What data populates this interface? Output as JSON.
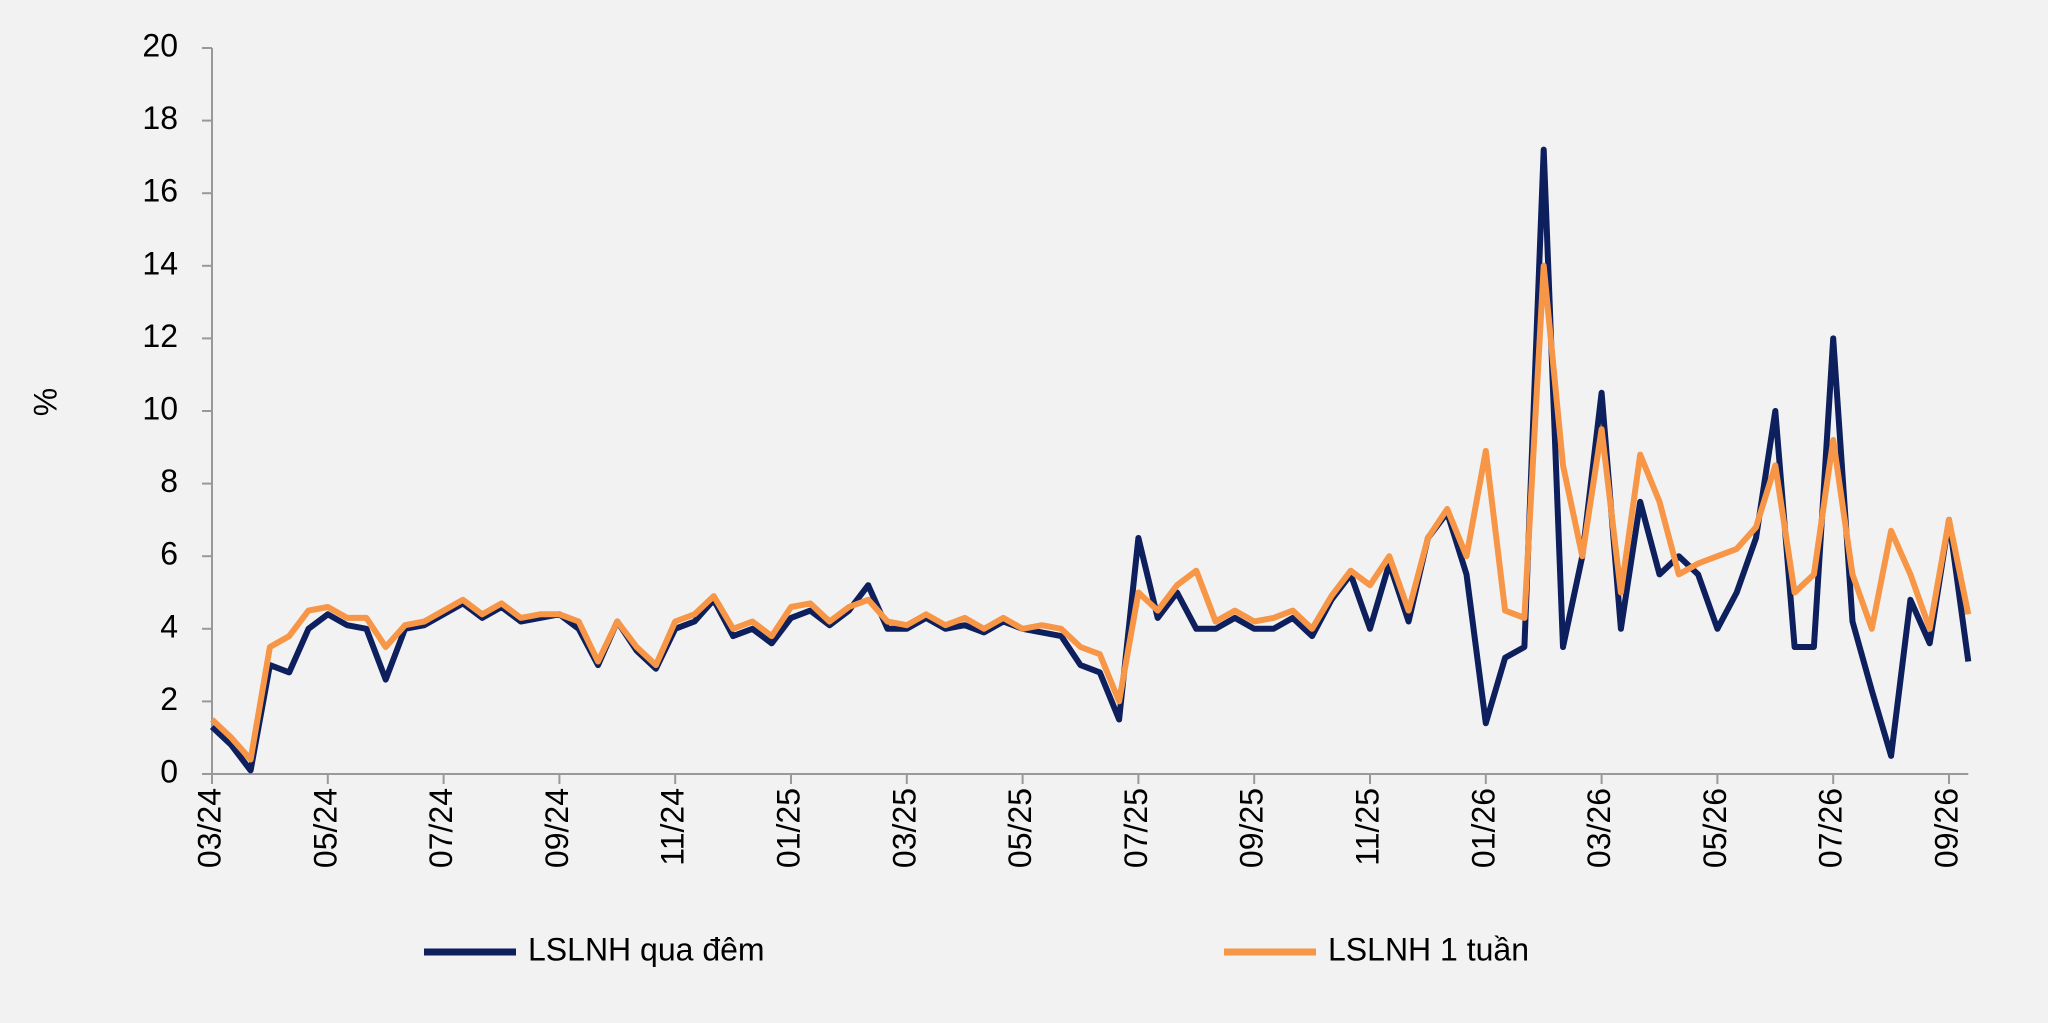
{
  "chart_data": {
    "type": "line",
    "y_label": "%",
    "categories": [
      "03/24",
      null,
      null,
      null,
      null,
      null,
      "05/24",
      null,
      null,
      null,
      null,
      null,
      "07/24",
      null,
      null,
      null,
      null,
      null,
      "09/24",
      null,
      null,
      null,
      null,
      null,
      "11/24",
      null,
      null,
      null,
      null,
      null,
      "01/25",
      null,
      null,
      null,
      null,
      null,
      "03/25",
      null,
      null,
      null,
      null,
      null,
      "05/25",
      null,
      null,
      null,
      null,
      null,
      "07/25",
      null,
      null,
      null,
      null,
      null,
      "09/25",
      null,
      null,
      null,
      null,
      null,
      "11/25",
      null,
      null,
      null,
      null,
      null,
      "01/26",
      null,
      null,
      null,
      null,
      null,
      "03/26",
      null,
      null,
      null,
      null,
      null,
      "05/26",
      null,
      null,
      null,
      null,
      null,
      "07/26",
      null,
      null,
      null,
      null,
      null,
      "09/26",
      null
    ],
    "series": [
      {
        "name": "LSLNH qua đêm",
        "color": "#0d1f5c",
        "values": [
          1.3,
          0.8,
          0.1,
          3.0,
          2.8,
          4.0,
          4.4,
          4.1,
          4.0,
          2.6,
          4.0,
          4.1,
          4.4,
          4.7,
          4.3,
          4.6,
          4.2,
          4.3,
          4.4,
          4.0,
          3.0,
          4.2,
          3.4,
          2.9,
          4.0,
          4.2,
          4.8,
          3.8,
          4.0,
          3.6,
          4.3,
          4.5,
          4.1,
          4.5,
          5.2,
          4.0,
          4.0,
          4.3,
          4.0,
          4.1,
          3.9,
          4.2,
          4.0,
          3.9,
          3.8,
          3.0,
          2.8,
          1.5,
          6.5,
          4.3,
          5.0,
          4.0,
          4.0,
          4.3,
          4.0,
          4.0,
          4.3,
          3.8,
          4.8,
          5.5,
          4.0,
          5.8,
          4.2,
          6.5,
          7.2,
          5.5,
          1.4,
          3.2,
          3.5,
          17.2,
          3.5,
          6.0,
          10.5,
          4.0,
          7.5,
          5.5,
          6.0,
          5.5,
          4.0,
          5.0,
          6.5,
          10.0,
          3.5,
          3.5,
          12.0,
          4.2,
          2.3,
          0.5,
          4.8,
          3.6,
          7.0,
          3.1
        ]
      },
      {
        "name": "LSLNH 1 tuần",
        "color": "#f79646",
        "values": [
          1.5,
          1.0,
          0.4,
          3.5,
          3.8,
          4.5,
          4.6,
          4.3,
          4.3,
          3.5,
          4.1,
          4.2,
          4.5,
          4.8,
          4.4,
          4.7,
          4.3,
          4.4,
          4.4,
          4.2,
          3.1,
          4.2,
          3.5,
          3.0,
          4.2,
          4.4,
          4.9,
          4.0,
          4.2,
          3.8,
          4.6,
          4.7,
          4.2,
          4.6,
          4.8,
          4.2,
          4.1,
          4.4,
          4.1,
          4.3,
          4.0,
          4.3,
          4.0,
          4.1,
          4.0,
          3.5,
          3.3,
          2.0,
          5.0,
          4.5,
          5.2,
          5.6,
          4.2,
          4.5,
          4.2,
          4.3,
          4.5,
          4.0,
          4.9,
          5.6,
          5.2,
          6.0,
          4.5,
          6.5,
          7.3,
          6.0,
          8.9,
          4.5,
          4.3,
          14.0,
          8.5,
          6.0,
          9.5,
          5.0,
          8.8,
          7.5,
          5.5,
          5.8,
          6.0,
          6.2,
          6.8,
          8.5,
          5.0,
          5.5,
          9.2,
          5.5,
          4.0,
          6.7,
          5.5,
          4.0,
          7.0,
          4.4
        ]
      }
    ],
    "ylim": [
      0,
      20
    ],
    "yticks": [
      0,
      2,
      4,
      6,
      8,
      10,
      12,
      14,
      16,
      18,
      20
    ],
    "grid": false
  }
}
